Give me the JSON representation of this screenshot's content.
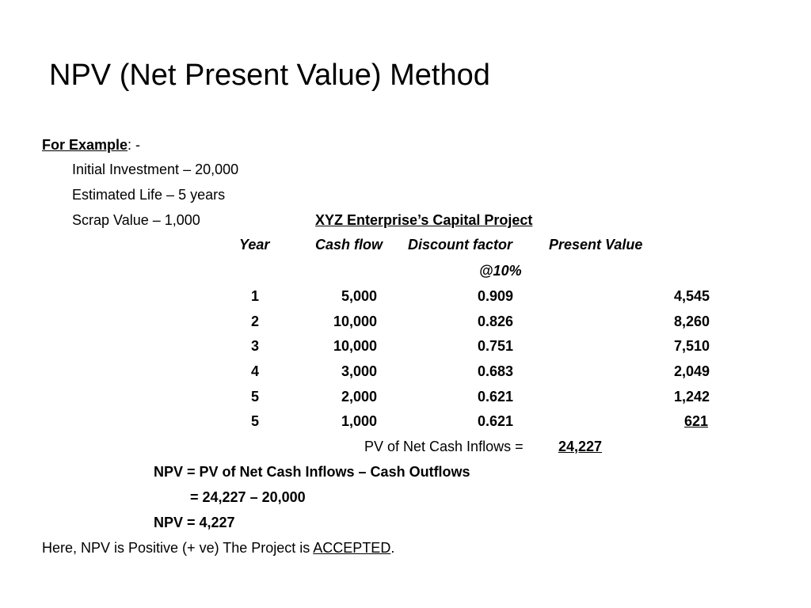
{
  "title": "NPV (Net Present Value) Method",
  "example": {
    "label": "For Example",
    "suffix": ": -",
    "items": [
      "Initial Investment – 20,000",
      "Estimated Life – 5 years",
      "Scrap Value – 1,000"
    ]
  },
  "table": {
    "caption": "XYZ Enterprise’s Capital Project",
    "headers": {
      "year": "Year",
      "cash_flow": "Cash flow",
      "discount_factor": "Discount factor",
      "discount_rate": "@10%",
      "present_value": "Present Value"
    },
    "rows": [
      {
        "year": "1",
        "cash_flow": "5,000",
        "factor": "0.909",
        "pv": "4,545"
      },
      {
        "year": "2",
        "cash_flow": "10,000",
        "factor": "0.826",
        "pv": "8,260"
      },
      {
        "year": "3",
        "cash_flow": "10,000",
        "factor": "0.751",
        "pv": "7,510"
      },
      {
        "year": "4",
        "cash_flow": "3,000",
        "factor": "0.683",
        "pv": "2,049"
      },
      {
        "year": "5",
        "cash_flow": "2,000",
        "factor": "0.621",
        "pv": "1,242"
      },
      {
        "year": "5",
        "cash_flow": "1,000",
        "factor": "0.621",
        "pv": "621"
      }
    ],
    "total_label": "PV of Net Cash Inflows =",
    "total_value": "24,227"
  },
  "formula": {
    "line1": "NPV = PV of Net Cash Inflows – Cash Outflows",
    "line2": "= 24,227 – 20,000",
    "line3": "NPV = 4,227"
  },
  "conclusion": {
    "text": "Here, NPV is Positive (+ ve) The Project is ",
    "decision": "ACCEPTED",
    "end": "."
  }
}
